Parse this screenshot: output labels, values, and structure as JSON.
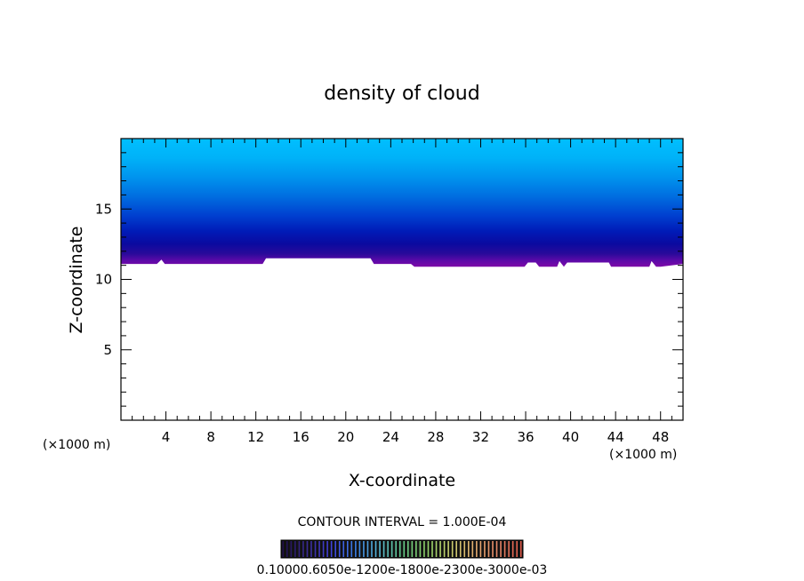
{
  "chart_data": {
    "type": "heatmap",
    "title": "density of cloud",
    "xlabel": "X-coordinate",
    "ylabel": "Z-coordinate",
    "x_unit_left": "(×1000 m)",
    "x_unit_right": "(×1000 m)",
    "xlim": [
      0,
      50
    ],
    "ylim": [
      0,
      20
    ],
    "x_ticks": [
      4,
      8,
      12,
      16,
      20,
      24,
      28,
      32,
      36,
      40,
      44,
      48
    ],
    "y_ticks": [
      5,
      10,
      15
    ],
    "contour_interval": "CONTOUR INTERVAL = 1.000E-04",
    "colorbar_labels": "0.10000e-05 0.60000e-04 0.12000e-03 0.18000e-03 0.23000e-03 0.30000e-03",
    "colorbar_text": "0.10000.6050e-1200e-1800e-2300e-3000e-03",
    "cloud_base_profile": {
      "x": [
        0,
        3.2,
        3.6,
        3.9,
        4.2,
        12.6,
        12.9,
        22.2,
        22.5,
        25.8,
        26.1,
        35.9,
        36.2,
        36.9,
        37.2,
        38.8,
        39.0,
        39.4,
        39.7,
        43.4,
        43.6,
        47.0,
        47.2,
        47.6,
        48.0,
        50
      ],
      "z": [
        11.1,
        11.1,
        11.4,
        11.1,
        11.1,
        11.1,
        11.5,
        11.5,
        11.1,
        11.1,
        10.9,
        10.9,
        11.2,
        11.2,
        10.9,
        10.9,
        11.3,
        10.9,
        11.2,
        11.2,
        10.9,
        10.9,
        11.3,
        10.9,
        10.9,
        11.1
      ]
    },
    "cloud_top_z": 20,
    "grid": false,
    "colorbar_colors": [
      "#20104a",
      "#3a2c94",
      "#4040d8",
      "#3c7ee8",
      "#58b8d8",
      "#63c98a",
      "#8fd46a",
      "#c8d06e",
      "#e4b070",
      "#e88a6a",
      "#e05a4a"
    ]
  }
}
